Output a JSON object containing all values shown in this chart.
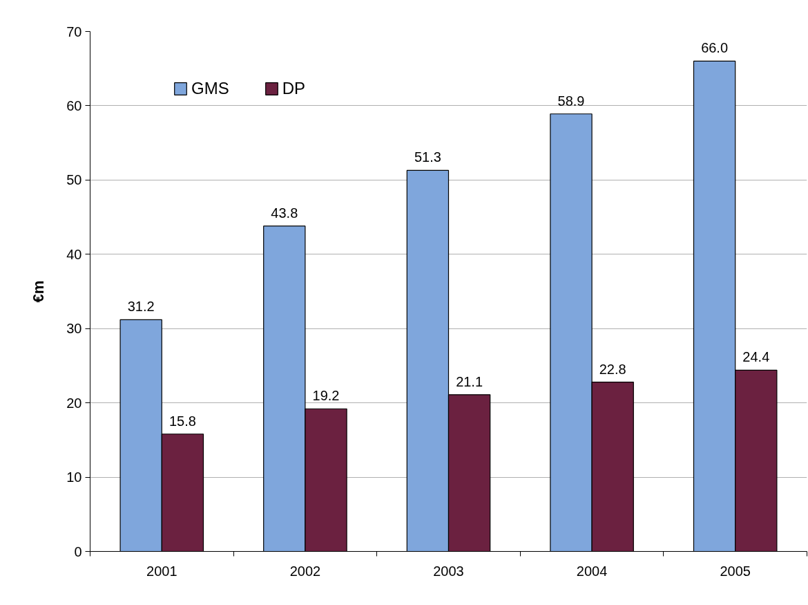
{
  "chart_data": {
    "type": "bar",
    "categories": [
      "2001",
      "2002",
      "2003",
      "2004",
      "2005"
    ],
    "ylabel": "€m",
    "ylim": [
      0,
      70
    ],
    "yticks": [
      0,
      10,
      20,
      30,
      40,
      50,
      60,
      70
    ],
    "grid": "y",
    "legend": "top left",
    "series": [
      {
        "name": "GMS",
        "color": "#7fa6dc",
        "values": [
          31.2,
          43.8,
          51.3,
          58.9,
          66.0
        ],
        "value_labels": [
          "31.2",
          "43.8",
          "51.3",
          "58.9",
          "66.0"
        ]
      },
      {
        "name": "DP",
        "color": "#6b2140",
        "values": [
          15.8,
          19.2,
          21.1,
          22.8,
          24.4
        ],
        "value_labels": [
          "15.8",
          "19.2",
          "21.1",
          "22.8",
          "24.4"
        ]
      }
    ]
  }
}
